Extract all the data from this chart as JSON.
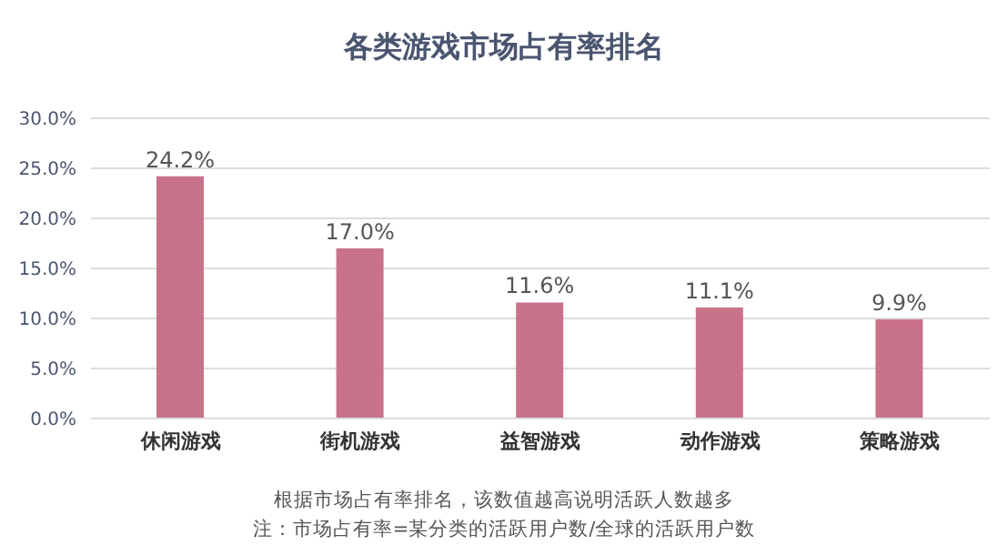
{
  "chart_data": {
    "type": "bar",
    "title": "各类游戏市场占有率排名",
    "categories": [
      "休闲游戏",
      "街机游戏",
      "益智游戏",
      "动作游戏",
      "策略游戏"
    ],
    "values": [
      24.2,
      17.0,
      11.6,
      11.1,
      9.9
    ],
    "value_labels": [
      "24.2%",
      "17.0%",
      "11.6%",
      "11.1%",
      "9.9%"
    ],
    "color": "#c8728a",
    "ylim": [
      0,
      30
    ],
    "yticks": [
      {
        "value": 0,
        "label": "0.0%"
      },
      {
        "value": 5,
        "label": "5.0%"
      },
      {
        "value": 10,
        "label": "10.0%"
      },
      {
        "value": 15,
        "label": "15.0%"
      },
      {
        "value": 20,
        "label": "20.0%"
      },
      {
        "value": 25,
        "label": "25.0%"
      },
      {
        "value": 30,
        "label": "30.0%"
      }
    ],
    "grid": "y",
    "annotations": [
      "根据市场占有率排名，该数值越高说明活跃人数越多",
      "注：市场占有率=某分类的活跃用户数/全球的活跃用户数"
    ]
  }
}
